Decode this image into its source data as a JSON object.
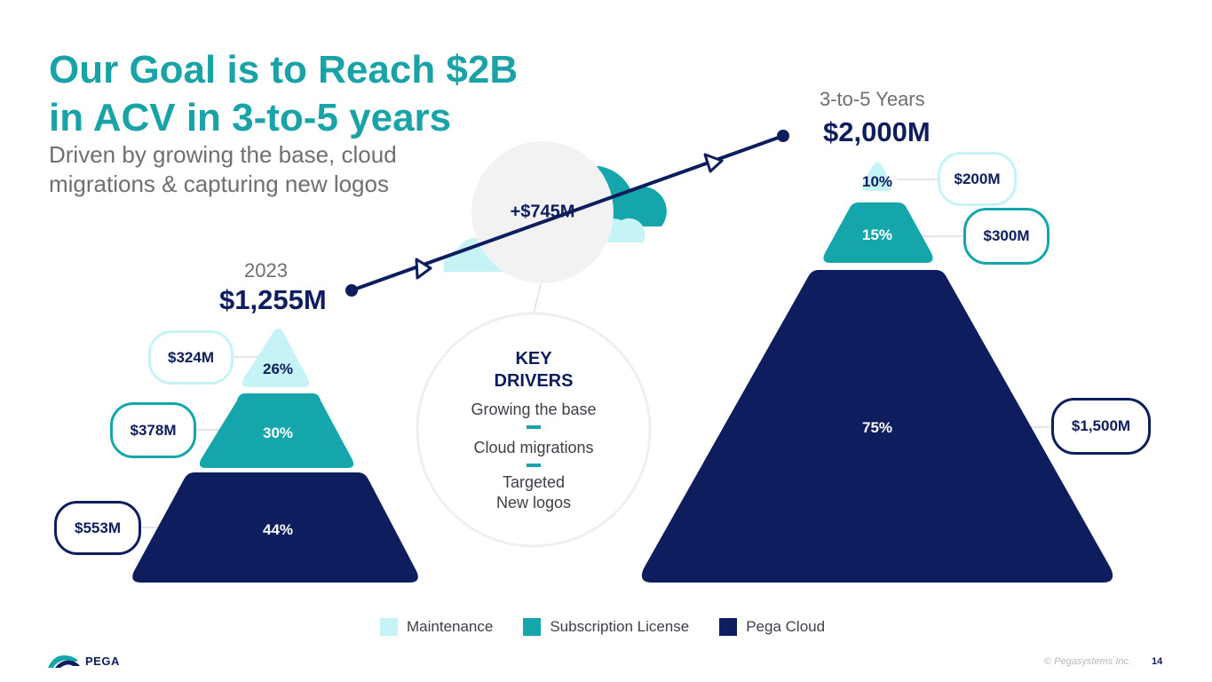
{
  "title_line1": "Our Goal is to Reach $2B",
  "title_line2": "in ACV in 3-to-5 years",
  "subtitle_line1": "Driven by growing the base, cloud",
  "subtitle_line2": "migrations & capturing new logos",
  "increase_label": "+$745M",
  "key_drivers": {
    "title_line1": "KEY",
    "title_line2": "DRIVERS",
    "item1": "Growing the base",
    "item2": "Cloud migrations",
    "item3_line1": "Targeted",
    "item3_line2": "New logos"
  },
  "colors": {
    "maintenance": "#c6f3f5",
    "subscription": "#14a6aa",
    "cloud": "#0d1d5e",
    "accent": "#1aa3a6"
  },
  "chart_data": {
    "type": "stacked pyramid",
    "series_names": [
      "Maintenance",
      "Subscription License",
      "Pega Cloud"
    ],
    "periods": [
      {
        "period": "2023",
        "total": "$1,255M",
        "segments": [
          {
            "series": "Maintenance",
            "value": "$324M",
            "percent": "26%"
          },
          {
            "series": "Subscription License",
            "value": "$378M",
            "percent": "30%"
          },
          {
            "series": "Pega Cloud",
            "value": "$553M",
            "percent": "44%"
          }
        ]
      },
      {
        "period": "3-to-5 Years",
        "total": "$2,000M",
        "segments": [
          {
            "series": "Maintenance",
            "value": "$200M",
            "percent": "10%"
          },
          {
            "series": "Subscription License",
            "value": "$300M",
            "percent": "15%"
          },
          {
            "series": "Pega Cloud",
            "value": "$1,500M",
            "percent": "75%"
          }
        ]
      }
    ]
  },
  "logo_text": "PEGA",
  "copyright": "© Pegasystems Inc.",
  "page_number": "14"
}
